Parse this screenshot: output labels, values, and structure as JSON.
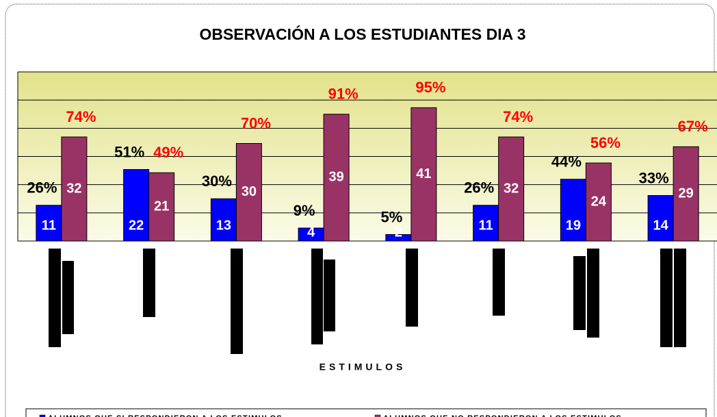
{
  "chart_data": {
    "type": "bar",
    "title": "OBSERVACIÓN A LOS ESTUDIANTES DIA  3",
    "x_label": "ESTIMULOS",
    "categories": [
      null,
      null,
      null,
      null,
      null,
      null,
      null,
      null
    ],
    "series": [
      {
        "name": "ALUMNOS QUE SI RESPONDIERON A LOS ESTIMULOS",
        "color": "#0000ff",
        "values": [
          11,
          22,
          13,
          4,
          2,
          11,
          19,
          14
        ],
        "percent_labels": [
          "26%",
          "51%",
          "30%",
          "9%",
          "5%",
          "26%",
          "44%",
          "33%"
        ],
        "percent_color": "#000000"
      },
      {
        "name": "ALUMNOS QUE NO RESPONDIERON A LOS ESTIMULOS",
        "color": "#993366",
        "values": [
          32,
          21,
          30,
          39,
          41,
          32,
          24,
          29
        ],
        "percent_labels": [
          "74%",
          "49%",
          "70%",
          "91%",
          "95%",
          "74%",
          "56%",
          "67%"
        ],
        "percent_color": "#ff0000"
      }
    ],
    "ylim": [
      0,
      52
    ],
    "yticks": [
      0,
      8.67,
      17.33,
      26,
      34.67,
      43.33,
      52
    ],
    "grid": true,
    "legend": "bottom"
  }
}
